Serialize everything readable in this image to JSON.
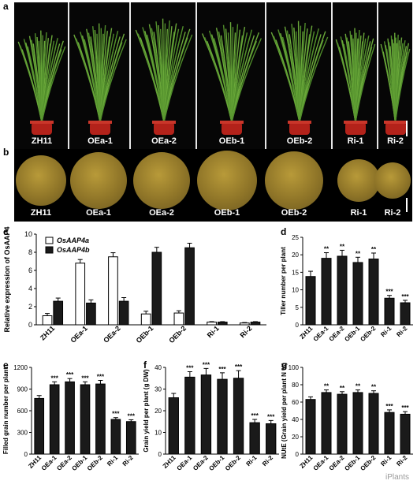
{
  "panels": {
    "a": "a",
    "b": "b",
    "c": "c",
    "d": "d",
    "e": "e",
    "f": "f",
    "g": "g"
  },
  "genotypes": [
    "ZH11",
    "OEa-1",
    "OEa-2",
    "OEb-1",
    "OEb-2",
    "Ri-1",
    "Ri-2"
  ],
  "colors": {
    "bar_black": "#1a1a1a",
    "bar_white": "#ffffff",
    "pot_red": "#b3221a",
    "grain_gold": "#a8892f"
  },
  "watermark": "iPlants",
  "chart_data": [
    {
      "panel": "c",
      "type": "bar",
      "ylabel": "Relative expression of OsAAP4",
      "ylim": [
        0,
        10
      ],
      "yticks": [
        0,
        2,
        4,
        6,
        8,
        10
      ],
      "categories": [
        "ZH11",
        "OEa-1",
        "OEa-2",
        "OEb-1",
        "OEb-2",
        "Ri-1",
        "Ri-2"
      ],
      "legend": "top-left",
      "series": [
        {
          "name": "OsAAP4a",
          "fill": "white",
          "values": [
            1.0,
            6.8,
            7.5,
            1.2,
            1.3,
            0.3,
            0.2
          ],
          "errors": [
            0.25,
            0.4,
            0.45,
            0.3,
            0.25,
            0.05,
            0.05
          ]
        },
        {
          "name": "OsAAP4b",
          "fill": "black",
          "values": [
            2.6,
            2.4,
            2.6,
            8.0,
            8.5,
            0.3,
            0.3
          ],
          "errors": [
            0.35,
            0.35,
            0.4,
            0.55,
            0.5,
            0.05,
            0.05
          ]
        }
      ]
    },
    {
      "panel": "d",
      "type": "bar",
      "ylabel": "Tiller number per plant",
      "ylim": [
        0,
        25
      ],
      "yticks": [
        0,
        5,
        10,
        15,
        20,
        25
      ],
      "categories": [
        "ZH11",
        "OEa-1",
        "OEa-2",
        "OEb-1",
        "OEb-2",
        "Ri-1",
        "Ri-2"
      ],
      "values": [
        13.8,
        19.0,
        19.6,
        17.8,
        18.8,
        7.6,
        6.3
      ],
      "errors": [
        1.5,
        1.6,
        1.7,
        1.5,
        1.7,
        0.8,
        0.7
      ],
      "stars": [
        "",
        "**",
        "**",
        "**",
        "**",
        "***",
        "***"
      ]
    },
    {
      "panel": "e",
      "type": "bar",
      "ylabel": "Filled grain number per plant",
      "ylim": [
        0,
        1200
      ],
      "yticks": [
        0,
        300,
        600,
        900,
        1200
      ],
      "categories": [
        "ZH11",
        "OEa-1",
        "OEa-2",
        "OEb-1",
        "OEb-2",
        "Ri-1",
        "Ri-2"
      ],
      "values": [
        770,
        960,
        1000,
        960,
        970,
        480,
        450
      ],
      "errors": [
        40,
        40,
        45,
        40,
        50,
        25,
        25
      ],
      "stars": [
        "",
        "***",
        "***",
        "***",
        "***",
        "***",
        "***"
      ]
    },
    {
      "panel": "f",
      "type": "bar",
      "ylabel": "Grain yield per plant (g DW)",
      "ylim": [
        0,
        40
      ],
      "yticks": [
        0,
        10,
        20,
        30,
        40
      ],
      "categories": [
        "ZH11",
        "OEa-1",
        "OEa-2",
        "OEb-1",
        "OEb-2",
        "Ri-1",
        "Ri-2"
      ],
      "values": [
        26,
        35.5,
        36.5,
        34.5,
        35,
        14.5,
        14
      ],
      "errors": [
        2,
        2.5,
        3,
        3,
        3.5,
        1.5,
        1.5
      ],
      "stars": [
        "",
        "***",
        "***",
        "***",
        "***",
        "***",
        "***"
      ]
    },
    {
      "panel": "g",
      "type": "bar",
      "ylabel": "NUtE (Grain yield per plant N %)",
      "ylim": [
        0,
        100
      ],
      "yticks": [
        0,
        20,
        40,
        60,
        80,
        100
      ],
      "categories": [
        "ZH11",
        "OEa-1",
        "OEa-2",
        "OEb-1",
        "OEb-2",
        "Ri-1",
        "Ri-2"
      ],
      "values": [
        63,
        71,
        69,
        71,
        70,
        48,
        46
      ],
      "errors": [
        3,
        3,
        3,
        3,
        3,
        3,
        3
      ],
      "stars": [
        "",
        "**",
        "**",
        "**",
        "**",
        "***",
        "***"
      ]
    }
  ]
}
